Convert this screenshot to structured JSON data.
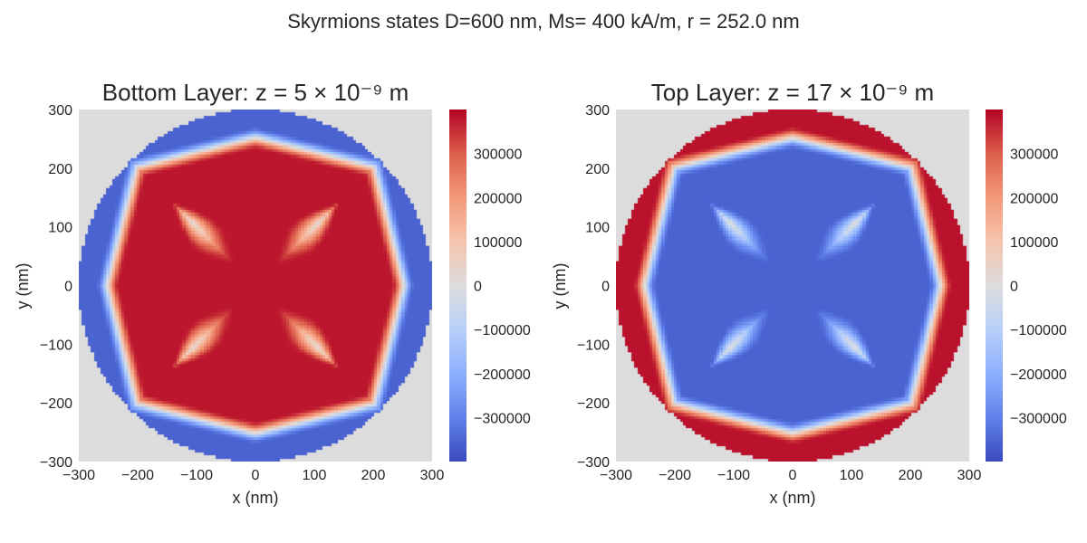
{
  "figure": {
    "suptitle": "Skyrmions states D=600 nm, Ms= 400 kA/m, r = 252.0 nm"
  },
  "chart_data": [
    {
      "type": "heatmap",
      "title": "Bottom Layer: z = 5 × 10⁻⁹ m",
      "xlabel": "x (nm)",
      "ylabel": "y (nm)",
      "xlim": [
        -300,
        300
      ],
      "ylim": [
        -300,
        300
      ],
      "xticks": [
        -300,
        -200,
        -100,
        0,
        100,
        200,
        300
      ],
      "yticks": [
        -300,
        -200,
        -100,
        0,
        100,
        200,
        300
      ],
      "xtick_labels": [
        "−300",
        "−200",
        "−100",
        "0",
        "100",
        "200",
        "300"
      ],
      "ytick_labels": [
        "−300",
        "−200",
        "−100",
        "0",
        "100",
        "200",
        "300"
      ],
      "colormap": "coolwarm",
      "background_color": "#dcdcdc",
      "disk_radius_nm": 300,
      "value_range": [
        -400000,
        400000
      ],
      "colorbar_ticks": [
        300000,
        200000,
        100000,
        0,
        -100000,
        -200000,
        -300000
      ],
      "colorbar_tick_labels": [
        "300000",
        "200000",
        "100000",
        "0",
        "−100000",
        "−200000",
        "−300000"
      ],
      "pattern": "four-armed cross, centre positive, rim negative",
      "center_value": 380000,
      "rim_value": -360000
    },
    {
      "type": "heatmap",
      "title": "Top Layer: z = 17 × 10⁻⁹ m",
      "xlabel": "x (nm)",
      "ylabel": "y (nm)",
      "xlim": [
        -300,
        300
      ],
      "ylim": [
        -300,
        300
      ],
      "xticks": [
        -300,
        -200,
        -100,
        0,
        100,
        200,
        300
      ],
      "yticks": [
        -300,
        -200,
        -100,
        0,
        100,
        200,
        300
      ],
      "xtick_labels": [
        "−300",
        "−200",
        "−100",
        "0",
        "100",
        "200",
        "300"
      ],
      "ytick_labels": [
        "−300",
        "−200",
        "−100",
        "0",
        "100",
        "200",
        "300"
      ],
      "colormap": "coolwarm",
      "background_color": "#dcdcdc",
      "disk_radius_nm": 300,
      "value_range": [
        -400000,
        400000
      ],
      "colorbar_ticks": [
        300000,
        200000,
        100000,
        0,
        -100000,
        -200000,
        -300000
      ],
      "colorbar_tick_labels": [
        "300000",
        "200000",
        "100000",
        "0",
        "−100000",
        "−200000",
        "−300000"
      ],
      "pattern": "four-armed cross, centre negative, rim positive",
      "center_value": -360000,
      "rim_value": 385000
    }
  ]
}
